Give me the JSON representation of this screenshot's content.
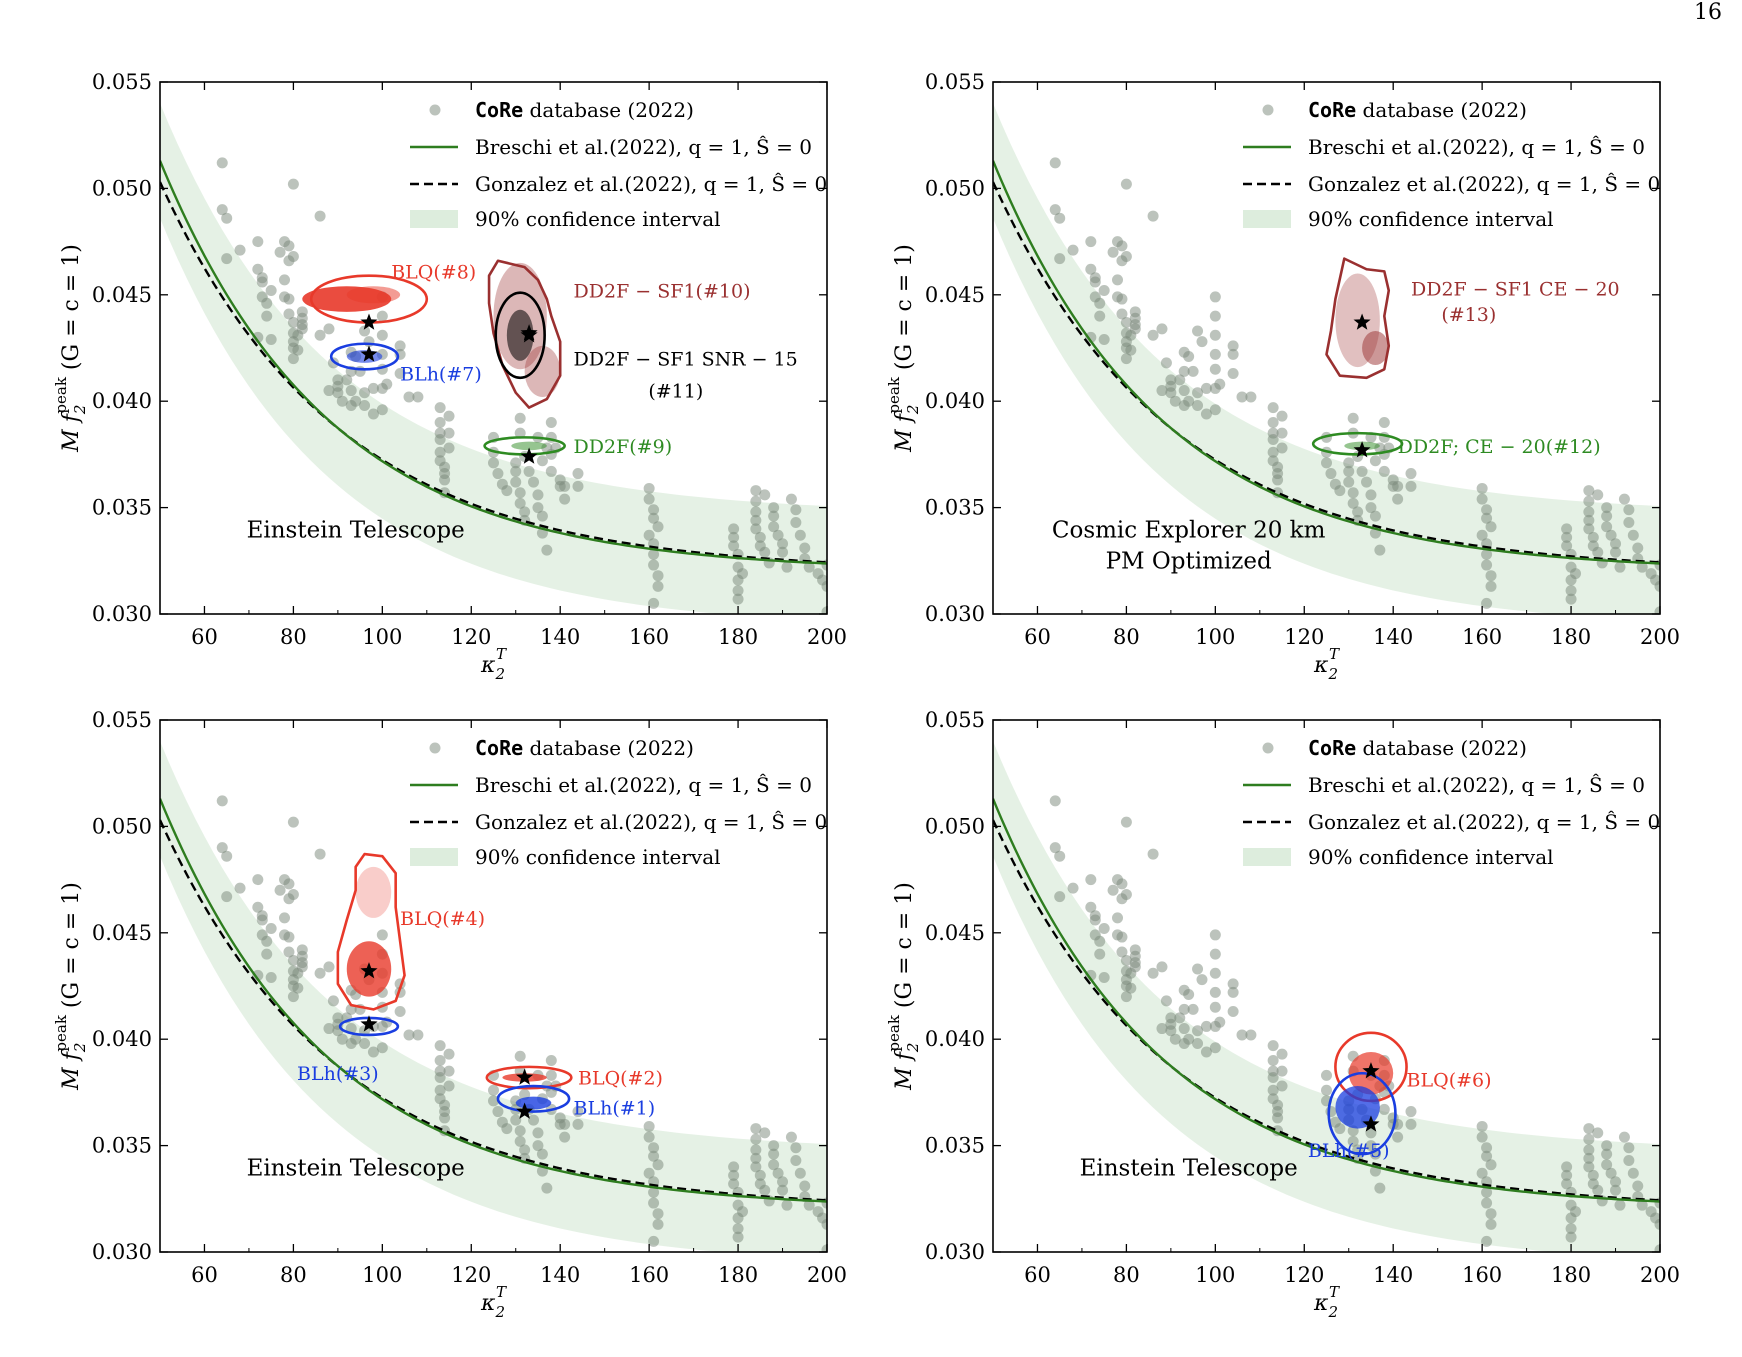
{
  "page_number": "16",
  "colors": {
    "data_points": "#7a877a",
    "breschi_line": "#2e7d1f",
    "gonzalez_line": "#000000",
    "confidence_band": "#cfe5cf",
    "red": "#e8392a",
    "blue": "#1a3ee0",
    "dark_red": "#9a3030",
    "green": "#2e8b22",
    "black": "#000000"
  },
  "legend": {
    "core_mono": "CoRe",
    "core_rest": " database (2022)",
    "breschi": "Breschi et al.(2022), q = 1, Ŝ = 0",
    "gonzalez": "Gonzalez et al.(2022), q = 1, Ŝ = 0",
    "band": "90% confidence interval"
  },
  "chart_data": [
    {
      "type": "scatter",
      "title": "",
      "detector": "Einstein Telescope",
      "xlabel": "κ2T",
      "ylabel": "M f2peak (G = c = 1)",
      "xlim": [
        50,
        200
      ],
      "ylim": [
        0.03,
        0.055
      ],
      "xticks": [
        "60",
        "80",
        "100",
        "120",
        "140",
        "160",
        "180",
        "200"
      ],
      "yticks": [
        "0.030",
        "0.035",
        "0.040",
        "0.045",
        "0.050",
        "0.055"
      ],
      "grid": false,
      "legend_position": "top-right",
      "series": [
        {
          "name": "BLQ(#8)",
          "color": "red",
          "x": 97,
          "y": 0.0437,
          "label_dx": 8,
          "label_dy": 0.0011
        },
        {
          "name": "BLh(#7)",
          "color": "blue",
          "x": 97,
          "y": 0.0422,
          "label_dx": 7,
          "label_dy": -0.0008
        },
        {
          "name": "DD2F − SF1(#10)",
          "color": "dark_red",
          "x": 133,
          "y": 0.0432,
          "label_dx": 3,
          "label_dy": 0.0003
        },
        {
          "name": "DD2F − SF1 SNR − 15",
          "sub": "(#11)",
          "color": "black",
          "x": 133,
          "y": 0.0431,
          "label_dx": 0,
          "label_dy": 0.0
        },
        {
          "name": "DD2F(#9)",
          "color": "green",
          "x": 133,
          "y": 0.0374,
          "label_dx": 0,
          "label_dy": 0.0
        }
      ]
    },
    {
      "type": "scatter",
      "title": "",
      "detector": "Cosmic Explorer 20 km",
      "detector_line2": "PM Optimized",
      "xlabel": "κ2T",
      "ylabel": "M f2peak (G = c = 1)",
      "xlim": [
        50,
        200
      ],
      "ylim": [
        0.03,
        0.055
      ],
      "xticks": [
        "60",
        "80",
        "100",
        "120",
        "140",
        "160",
        "180",
        "200"
      ],
      "yticks": [
        "0.030",
        "0.035",
        "0.040",
        "0.045",
        "0.050",
        "0.055"
      ],
      "grid": false,
      "legend_position": "top-right",
      "series": [
        {
          "name": "DD2F − SF1 CE − 20",
          "sub": "(#13)",
          "color": "dark_red",
          "x": 133,
          "y": 0.0437
        },
        {
          "name": "DD2F; CE − 20(#12)",
          "color": "green",
          "x": 133,
          "y": 0.0377
        }
      ]
    },
    {
      "type": "scatter",
      "title": "",
      "detector": "Einstein Telescope",
      "xlabel": "κ2T",
      "ylabel": "M f2peak (G = c = 1)",
      "xlim": [
        50,
        200
      ],
      "ylim": [
        0.03,
        0.055
      ],
      "xticks": [
        "60",
        "80",
        "100",
        "120",
        "140",
        "160",
        "180",
        "200"
      ],
      "yticks": [
        "0.030",
        "0.035",
        "0.040",
        "0.045",
        "0.050",
        "0.055"
      ],
      "grid": false,
      "legend_position": "top-right",
      "series": [
        {
          "name": "BLQ(#4)",
          "color": "red",
          "x": 97,
          "y": 0.0432
        },
        {
          "name": "BLh(#3)",
          "color": "blue",
          "x": 97,
          "y": 0.0407
        },
        {
          "name": "BLQ(#2)",
          "color": "red",
          "x": 132,
          "y": 0.0382
        },
        {
          "name": "BLh(#1)",
          "color": "blue",
          "x": 132,
          "y": 0.0366
        }
      ]
    },
    {
      "type": "scatter",
      "title": "",
      "detector": "Einstein Telescope",
      "xlabel": "κ2T",
      "ylabel": "M f2peak (G = c = 1)",
      "xlim": [
        50,
        200
      ],
      "ylim": [
        0.03,
        0.055
      ],
      "xticks": [
        "60",
        "80",
        "100",
        "120",
        "140",
        "160",
        "180",
        "200"
      ],
      "yticks": [
        "0.030",
        "0.035",
        "0.040",
        "0.045",
        "0.050",
        "0.055"
      ],
      "grid": false,
      "legend_position": "top-right",
      "series": [
        {
          "name": "BLQ(#6)",
          "color": "red",
          "x": 135,
          "y": 0.0385
        },
        {
          "name": "BLh(#5)",
          "color": "blue",
          "x": 135,
          "y": 0.036
        }
      ]
    }
  ],
  "core_points": [
    [
      64,
      0.0512
    ],
    [
      64,
      0.049
    ],
    [
      65,
      0.0486
    ],
    [
      65,
      0.0467
    ],
    [
      68,
      0.0471
    ],
    [
      72,
      0.0475
    ],
    [
      72,
      0.0462
    ],
    [
      73,
      0.0458
    ],
    [
      73,
      0.0449
    ],
    [
      73,
      0.0456
    ],
    [
      74,
      0.0446
    ],
    [
      74,
      0.044
    ],
    [
      75,
      0.0452
    ],
    [
      72,
      0.043
    ],
    [
      77,
      0.047
    ],
    [
      78,
      0.0475
    ],
    [
      79,
      0.0473
    ],
    [
      79,
      0.0466
    ],
    [
      80,
      0.0502
    ],
    [
      80,
      0.0468
    ],
    [
      78,
      0.0457
    ],
    [
      78,
      0.0449
    ],
    [
      79,
      0.0448
    ],
    [
      79,
      0.0441
    ],
    [
      80,
      0.0437
    ],
    [
      80,
      0.0432
    ],
    [
      80,
      0.0428
    ],
    [
      80,
      0.0425
    ],
    [
      81,
      0.0431
    ],
    [
      81,
      0.0424
    ],
    [
      82,
      0.0442
    ],
    [
      82,
      0.0439
    ],
    [
      82,
      0.0436
    ],
    [
      82,
      0.0434
    ],
    [
      86,
      0.0431
    ],
    [
      86,
      0.0487
    ],
    [
      88,
      0.0434
    ],
    [
      89,
      0.0418
    ],
    [
      90,
      0.041
    ],
    [
      90,
      0.0407
    ],
    [
      90,
      0.0404
    ],
    [
      91,
      0.04
    ],
    [
      92,
      0.041
    ],
    [
      93,
      0.0423
    ],
    [
      93,
      0.0414
    ],
    [
      93,
      0.0405
    ],
    [
      93,
      0.0398
    ],
    [
      94,
      0.0421
    ],
    [
      94,
      0.04
    ],
    [
      95,
      0.0414
    ],
    [
      96,
      0.0433
    ],
    [
      96,
      0.0404
    ],
    [
      96,
      0.0398
    ],
    [
      97,
      0.0428
    ],
    [
      98,
      0.0406
    ],
    [
      98,
      0.0394
    ],
    [
      100,
      0.0449
    ],
    [
      100,
      0.044
    ],
    [
      100,
      0.0431
    ],
    [
      100,
      0.0422
    ],
    [
      100,
      0.0415
    ],
    [
      100,
      0.0406
    ],
    [
      100,
      0.0396
    ],
    [
      101,
      0.0408
    ],
    [
      104,
      0.0426
    ],
    [
      104,
      0.0413
    ],
    [
      80,
      0.042
    ],
    [
      75,
      0.0429
    ],
    [
      88,
      0.0405
    ],
    [
      104,
      0.0422
    ],
    [
      106,
      0.0402
    ],
    [
      108,
      0.0402
    ],
    [
      113,
      0.0397
    ],
    [
      113,
      0.039
    ],
    [
      113,
      0.0385
    ],
    [
      113,
      0.0382
    ],
    [
      113,
      0.0376
    ],
    [
      113,
      0.0372
    ],
    [
      114,
      0.0369
    ],
    [
      114,
      0.0366
    ],
    [
      114,
      0.0363
    ],
    [
      114,
      0.0357
    ],
    [
      115,
      0.0393
    ],
    [
      115,
      0.0385
    ],
    [
      115,
      0.0378
    ],
    [
      125,
      0.0383
    ],
    [
      125,
      0.0376
    ],
    [
      125,
      0.0371
    ],
    [
      126,
      0.0366
    ],
    [
      127,
      0.0361
    ],
    [
      128,
      0.0358
    ],
    [
      130,
      0.0371
    ],
    [
      130,
      0.0367
    ],
    [
      130,
      0.0362
    ],
    [
      131,
      0.0357
    ],
    [
      131,
      0.0352
    ],
    [
      132,
      0.0348
    ],
    [
      132,
      0.0344
    ],
    [
      132,
      0.0374
    ],
    [
      133,
      0.0367
    ],
    [
      134,
      0.0362
    ],
    [
      135,
      0.0356
    ],
    [
      135,
      0.035
    ],
    [
      136,
      0.0372
    ],
    [
      137,
      0.0378
    ],
    [
      138,
      0.0383
    ],
    [
      138,
      0.0375
    ],
    [
      138,
      0.0367
    ],
    [
      140,
      0.0363
    ],
    [
      140,
      0.036
    ],
    [
      141,
      0.0354
    ],
    [
      136,
      0.0346
    ],
    [
      136,
      0.0338
    ],
    [
      137,
      0.033
    ],
    [
      144,
      0.0366
    ],
    [
      144,
      0.036
    ],
    [
      131,
      0.0392
    ],
    [
      131,
      0.0385
    ],
    [
      135,
      0.0383
    ],
    [
      138,
      0.039
    ],
    [
      139,
      0.0378
    ],
    [
      141,
      0.036
    ],
    [
      160,
      0.0359
    ],
    [
      160,
      0.0354
    ],
    [
      161,
      0.0349
    ],
    [
      161,
      0.0345
    ],
    [
      162,
      0.0341
    ],
    [
      160,
      0.0337
    ],
    [
      161,
      0.0333
    ],
    [
      161,
      0.0328
    ],
    [
      161,
      0.0323
    ],
    [
      162,
      0.0318
    ],
    [
      162,
      0.0313
    ],
    [
      161,
      0.0305
    ],
    [
      179,
      0.034
    ],
    [
      179,
      0.0336
    ],
    [
      179,
      0.0332
    ],
    [
      180,
      0.0328
    ],
    [
      180,
      0.0322
    ],
    [
      181,
      0.0319
    ],
    [
      180,
      0.0316
    ],
    [
      180,
      0.0311
    ],
    [
      180,
      0.0307
    ],
    [
      184,
      0.0358
    ],
    [
      184,
      0.0353
    ],
    [
      184,
      0.0348
    ],
    [
      184,
      0.0344
    ],
    [
      184,
      0.034
    ],
    [
      185,
      0.0336
    ],
    [
      185,
      0.0332
    ],
    [
      186,
      0.0329
    ],
    [
      187,
      0.0324
    ],
    [
      188,
      0.035
    ],
    [
      188,
      0.0346
    ],
    [
      188,
      0.0341
    ],
    [
      189,
      0.0337
    ],
    [
      190,
      0.0333
    ],
    [
      190,
      0.0329
    ],
    [
      191,
      0.0322
    ],
    [
      193,
      0.0349
    ],
    [
      193,
      0.0343
    ],
    [
      194,
      0.0337
    ],
    [
      195,
      0.0331
    ],
    [
      195,
      0.0326
    ],
    [
      196,
      0.0322
    ],
    [
      198,
      0.0319
    ],
    [
      199,
      0.0316
    ],
    [
      200,
      0.0313
    ],
    [
      200,
      0.0301
    ],
    [
      192,
      0.0354
    ],
    [
      186,
      0.0356
    ],
    [
      200,
      0.0323
    ]
  ]
}
